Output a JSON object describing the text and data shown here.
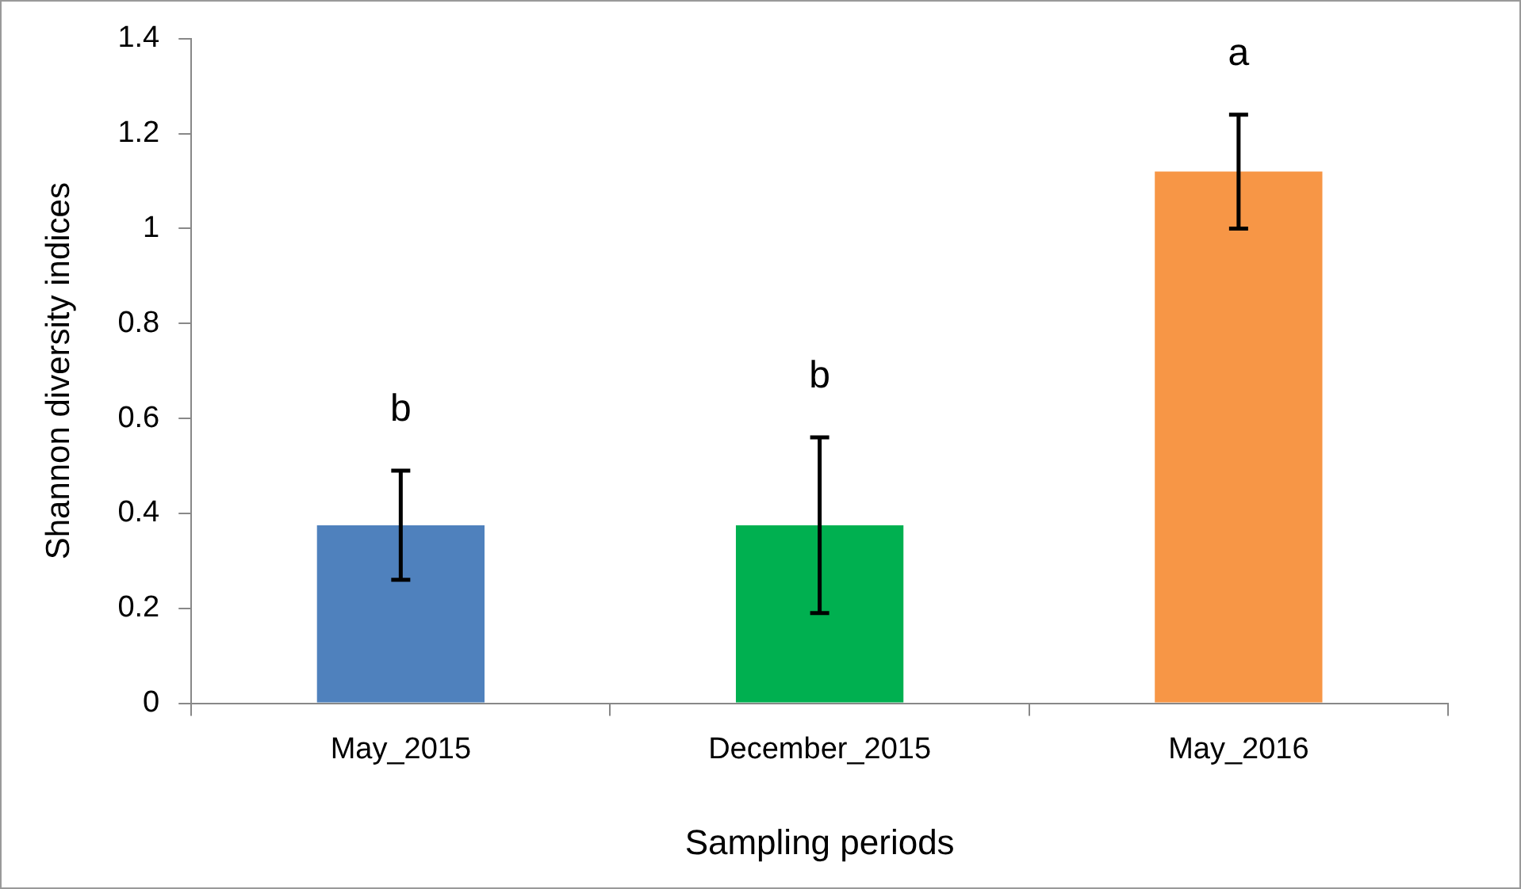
{
  "chart_data": {
    "type": "bar",
    "xlabel": "Sampling periods",
    "ylabel": "Shannon diversity indices",
    "categories": [
      "May_2015",
      "December_2015",
      "May_2016"
    ],
    "values": [
      0.375,
      0.375,
      1.12
    ],
    "colors": [
      "#4f81bd",
      "#00b050",
      "#f79646"
    ],
    "errors": [
      [
        0.26,
        0.49
      ],
      [
        0.19,
        0.56
      ],
      [
        1.0,
        1.24
      ]
    ],
    "ylim": [
      0,
      1.4
    ],
    "yticks": [
      0,
      0.2,
      0.4,
      0.6,
      0.8,
      1,
      1.2,
      1.4
    ],
    "grid": false,
    "legend": false,
    "annotations": [
      "b",
      "b",
      "a"
    ]
  }
}
